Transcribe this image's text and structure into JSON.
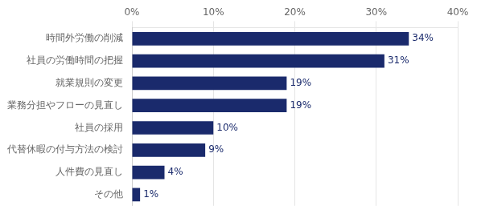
{
  "chart_data": {
    "type": "bar",
    "orientation": "horizontal",
    "categories": [
      "その他",
      "人件費の見直し",
      "代替休暇の付与方法の検討",
      "社員の採用",
      "業務分担やフローの見直し",
      "就業規則の変更",
      "社員の労働時間の把握",
      "時間外労働の削減"
    ],
    "values": [
      1,
      4,
      9,
      10,
      19,
      19,
      31,
      34
    ],
    "value_labels": [
      "1%",
      "4%",
      "9%",
      "10%",
      "19%",
      "19%",
      "31%",
      "34%"
    ],
    "data_labels": true,
    "color": "#1a2a6c",
    "xlim": [
      0,
      40
    ],
    "xticks": [
      {
        "value": 0,
        "label": "0%"
      },
      {
        "value": 10,
        "label": "10%"
      },
      {
        "value": 20,
        "label": "20%"
      },
      {
        "value": 30,
        "label": "30%"
      },
      {
        "value": 40,
        "label": "40%"
      }
    ],
    "grid": true
  }
}
